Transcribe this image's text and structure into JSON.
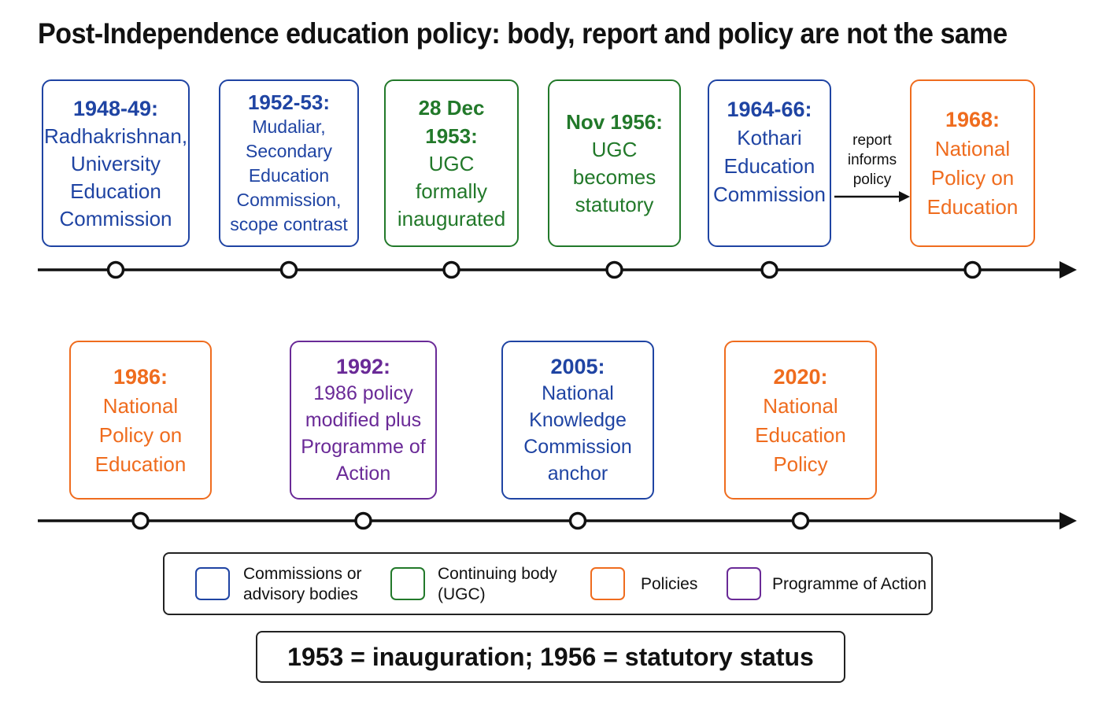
{
  "title": "Post-Independence education policy: body, report and policy are not the same",
  "colors": {
    "commission": "#1f44a3",
    "continuing_body": "#22792a",
    "policy": "#ef6c1e",
    "programme": "#6a2a97"
  },
  "timeline_top": [
    {
      "date": "1948-49:",
      "text": "Radhakrishnan,\nUniversity\nEducation\nCommission",
      "category": "commission"
    },
    {
      "date": "1952-53:",
      "text": "Mudaliar,\nSecondary\nEducation\nCommission,\nscope contrast",
      "category": "commission"
    },
    {
      "date": "28 Dec 1953:",
      "text": "UGC\nformally\ninaugurated",
      "category": "continuing_body"
    },
    {
      "date": "Nov 1956:",
      "text": "UGC\nbecomes\nstatutory",
      "category": "continuing_body"
    },
    {
      "date": "1964-66:",
      "text": "Kothari\nEducation\nCommission",
      "category": "commission"
    },
    {
      "date": "1968:",
      "text": "National\nPolicy on\nEducation",
      "category": "policy"
    }
  ],
  "connector_label": "report\ninforms\npolicy",
  "timeline_bottom": [
    {
      "date": "1986:",
      "text": "National\nPolicy on\nEducation",
      "category": "policy"
    },
    {
      "date": "1992:",
      "text": "1986 policy\nmodified plus\nProgramme of\nAction",
      "category": "programme"
    },
    {
      "date": "2005:",
      "text": "National\nKnowledge\nCommission\nanchor",
      "category": "commission"
    },
    {
      "date": "2020:",
      "text": "National\nEducation\nPolicy",
      "category": "policy"
    }
  ],
  "legend": [
    {
      "label": "Commissions or\nadvisory bodies",
      "category": "commission"
    },
    {
      "label": "Continuing body\n(UGC)",
      "category": "continuing_body"
    },
    {
      "label": "Policies",
      "category": "policy"
    },
    {
      "label": "Programme of Action",
      "category": "programme"
    }
  ],
  "note": "1953 = inauguration; 1956 = statutory status"
}
